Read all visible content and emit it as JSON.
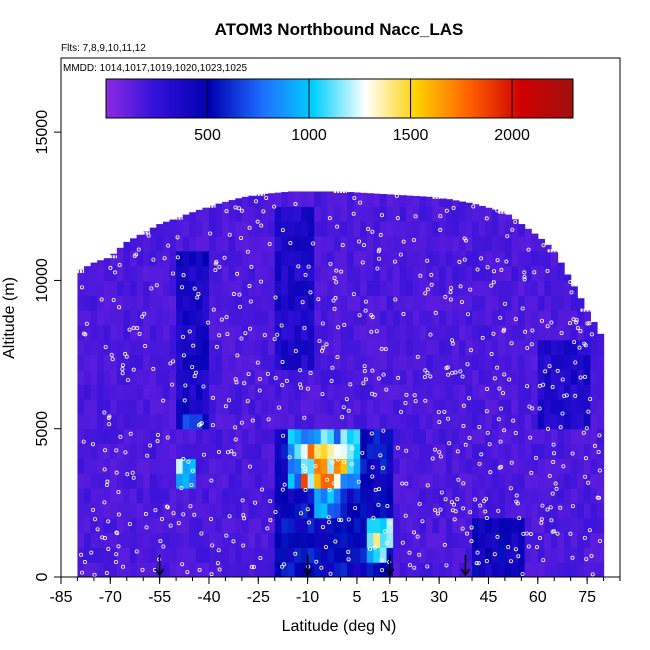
{
  "chart_data": {
    "type": "heatmap",
    "title": "ATOM3 Northbound Nacc_LAS",
    "subtitle_flights": "Flts: 7,8,9,10,11,12",
    "subtitle_dates": "MMDD: 1014,1017,1019,1020,1023,1025",
    "xlabel": "Latitude (deg N)",
    "ylabel": "Altitude (m)",
    "xlim": [
      -85,
      85
    ],
    "ylim": [
      0,
      17500
    ],
    "x_ticks": [
      "-85",
      "-70",
      "-55",
      "-40",
      "-25",
      "-10",
      "5",
      "15",
      "30",
      "45",
      "60",
      "75"
    ],
    "x_tick_values": [
      -85,
      -70,
      -55,
      -40,
      -25,
      -10,
      5,
      15,
      30,
      45,
      60,
      75
    ],
    "y_ticks": [
      "0",
      "5000",
      "10000",
      "15000"
    ],
    "y_tick_values": [
      0,
      5000,
      10000,
      15000
    ],
    "colorbar": {
      "range": [
        0,
        2300
      ],
      "ticks": [
        "500",
        "1000",
        "1500",
        "2000"
      ],
      "tick_values": [
        500,
        1000,
        1500,
        2000
      ],
      "colors": [
        "#8a2be2",
        "#3010d8",
        "#0000b0",
        "#1e6cff",
        "#00d0ff",
        "#ffffff",
        "#ffd000",
        "#ff6000",
        "#d00000",
        "#a01010"
      ]
    },
    "background_value": 180,
    "altitude_ceiling": [
      [
        -80,
        10300
      ],
      [
        -75,
        10600
      ],
      [
        -70,
        10800
      ],
      [
        -65,
        11300
      ],
      [
        -60,
        11600
      ],
      [
        -55,
        11900
      ],
      [
        -50,
        12100
      ],
      [
        -45,
        12300
      ],
      [
        -40,
        12500
      ],
      [
        -30,
        12800
      ],
      [
        -25,
        12900
      ],
      [
        -15,
        13000
      ],
      [
        0,
        13000
      ],
      [
        15,
        12900
      ],
      [
        30,
        12800
      ],
      [
        40,
        12600
      ],
      [
        50,
        12300
      ],
      [
        60,
        11500
      ],
      [
        65,
        11000
      ],
      [
        70,
        10000
      ],
      [
        75,
        9000
      ],
      [
        79,
        8200
      ]
    ],
    "features": [
      {
        "lat": [
          -12,
          2
        ],
        "alt": [
          3400,
          4500
        ],
        "value": 1450
      },
      {
        "lat": [
          -16,
          5
        ],
        "alt": [
          3000,
          4800
        ],
        "value": 950
      },
      {
        "lat": [
          -12,
          0
        ],
        "alt": [
          2800,
          3600
        ],
        "value": 1550
      },
      {
        "lat": [
          -8,
          0
        ],
        "alt": [
          1900,
          3000
        ],
        "value": 900
      },
      {
        "lat": [
          9,
          14
        ],
        "alt": [
          500,
          2100
        ],
        "value": 1000
      },
      {
        "lat": [
          11,
          16
        ],
        "alt": [
          1200,
          1800
        ],
        "value": 1300
      },
      {
        "lat": [
          -50,
          -44
        ],
        "alt": [
          2800,
          4200
        ],
        "value": 1000
      },
      {
        "lat": [
          -47,
          -43
        ],
        "alt": [
          5000,
          5500
        ],
        "value": 700
      },
      {
        "lat": [
          -3,
          3
        ],
        "alt": [
          13000,
          13800
        ],
        "value": 700
      },
      {
        "lat": [
          -50,
          -40
        ],
        "alt": [
          5000,
          11000
        ],
        "value": 400
      },
      {
        "lat": [
          -20,
          -8
        ],
        "alt": [
          7000,
          12500
        ],
        "value": 350
      },
      {
        "lat": [
          -20,
          15
        ],
        "alt": [
          0,
          5000
        ],
        "value": 500
      },
      {
        "lat": [
          40,
          55
        ],
        "alt": [
          0,
          2000
        ],
        "value": 450
      },
      {
        "lat": [
          60,
          75
        ],
        "alt": [
          5000,
          8000
        ],
        "value": 350
      }
    ],
    "sample_markers_lat": [
      -55,
      -10,
      15,
      38
    ]
  }
}
